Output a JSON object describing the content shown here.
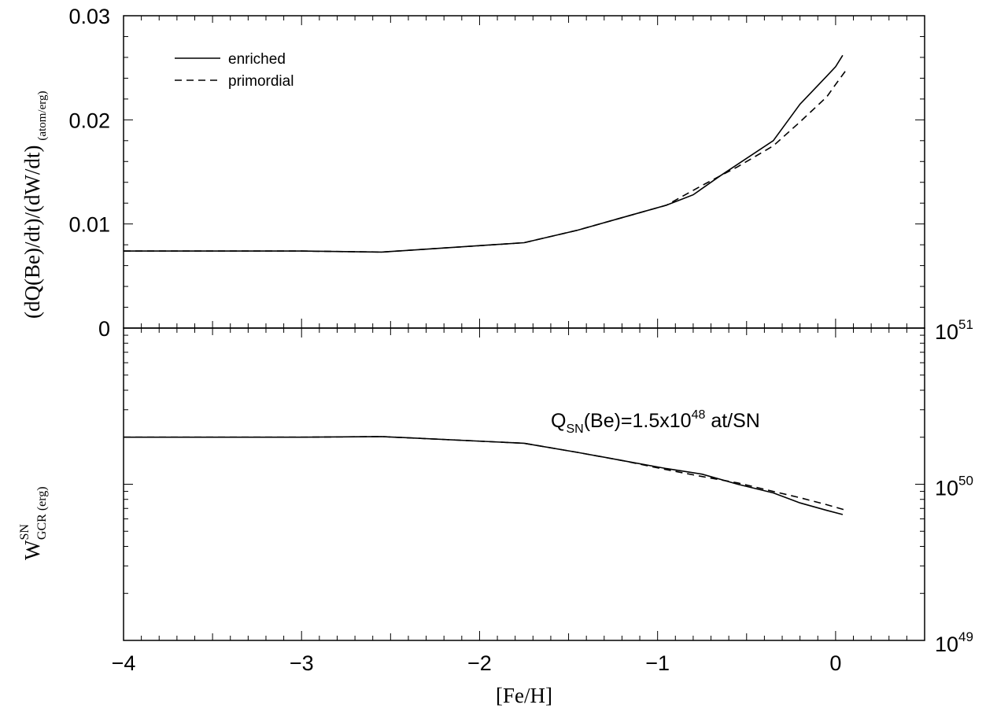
{
  "chart_data": [
    {
      "panel": "top",
      "type": "line",
      "ylabel": {
        "main": "(dQ(Be)/dt)/(dW/dt)",
        "subscript": "(atom/erg)"
      },
      "xlim": [
        -4,
        0.5
      ],
      "ylim": [
        0,
        0.03
      ],
      "y_ticks": [
        "0",
        "0.01",
        "0.02",
        "0.03"
      ],
      "legend": {
        "placement": "top-left",
        "entries": [
          {
            "label": "enriched",
            "style": "solid"
          },
          {
            "label": "primordial",
            "style": "dashed"
          }
        ]
      },
      "series": [
        {
          "name": "enriched",
          "style": "solid",
          "points": [
            [
              -4.0,
              0.0074
            ],
            [
              -3.0,
              0.0074
            ],
            [
              -2.55,
              0.0073
            ],
            [
              -1.75,
              0.0082
            ],
            [
              -1.45,
              0.0094
            ],
            [
              -1.2,
              0.0106
            ],
            [
              -0.95,
              0.0118
            ],
            [
              -0.8,
              0.0128
            ],
            [
              -0.65,
              0.0146
            ],
            [
              -0.35,
              0.018
            ],
            [
              -0.2,
              0.0215
            ],
            [
              -0.05,
              0.0242
            ],
            [
              0.0,
              0.0251
            ],
            [
              0.04,
              0.0262
            ]
          ]
        },
        {
          "name": "primordial",
          "style": "dashed",
          "points": [
            [
              -4.0,
              0.0074
            ],
            [
              -3.0,
              0.0074
            ],
            [
              -2.55,
              0.0073
            ],
            [
              -1.75,
              0.0082
            ],
            [
              -1.45,
              0.0094
            ],
            [
              -1.2,
              0.0106
            ],
            [
              -0.95,
              0.0118
            ],
            [
              -0.75,
              0.0137
            ],
            [
              -0.55,
              0.0155
            ],
            [
              -0.35,
              0.0175
            ],
            [
              -0.2,
              0.0198
            ],
            [
              -0.05,
              0.0222
            ],
            [
              0.0,
              0.0234
            ],
            [
              0.06,
              0.0248
            ]
          ]
        }
      ]
    },
    {
      "panel": "bottom",
      "type": "line",
      "xlabel": "[Fe/H]",
      "ylabel": {
        "main": "W",
        "superscript": "SN",
        "subscript": "GCR (erg)"
      },
      "xlim": [
        -4,
        0.5
      ],
      "x_ticks": [
        "−4",
        "−3",
        "−2",
        "−1",
        "0"
      ],
      "y_scale": "log",
      "ylim": [
        1e+49,
        1e+51
      ],
      "y_ticks_right": [
        {
          "base": "10",
          "exp": "49"
        },
        {
          "base": "10",
          "exp": "50"
        },
        {
          "base": "10",
          "exp": "51"
        }
      ],
      "annotation": {
        "prefix": "Q",
        "sub": "SN",
        "middle": "(Be)=1.5x10",
        "sup": "48",
        "suffix": " at/SN"
      },
      "series": [
        {
          "name": "enriched",
          "style": "solid",
          "points": [
            [
              -4.0,
              2e+50
            ],
            [
              -3.0,
              2e+50
            ],
            [
              -2.55,
              2.02e+50
            ],
            [
              -1.75,
              1.83e+50
            ],
            [
              -1.45,
              1.6e+50
            ],
            [
              -1.2,
              1.42e+50
            ],
            [
              -0.95,
              1.26e+50
            ],
            [
              -0.75,
              1.16e+50
            ],
            [
              -0.55,
              1e+50
            ],
            [
              -0.35,
              8.8e+49
            ],
            [
              -0.2,
              7.6e+49
            ],
            [
              -0.05,
              6.8e+49
            ],
            [
              0.04,
              6.4e+49
            ]
          ]
        },
        {
          "name": "primordial",
          "style": "dashed",
          "points": [
            [
              -4.0,
              2e+50
            ],
            [
              -3.0,
              2e+50
            ],
            [
              -2.55,
              2.02e+50
            ],
            [
              -1.75,
              1.83e+50
            ],
            [
              -1.45,
              1.6e+50
            ],
            [
              -1.2,
              1.42e+50
            ],
            [
              -0.95,
              1.24e+50
            ],
            [
              -0.75,
              1.12e+50
            ],
            [
              -0.55,
              1.02e+50
            ],
            [
              -0.35,
              9e+49
            ],
            [
              -0.2,
              8.2e+49
            ],
            [
              -0.05,
              7.4e+49
            ],
            [
              0.06,
              6.8e+49
            ]
          ]
        }
      ]
    }
  ]
}
